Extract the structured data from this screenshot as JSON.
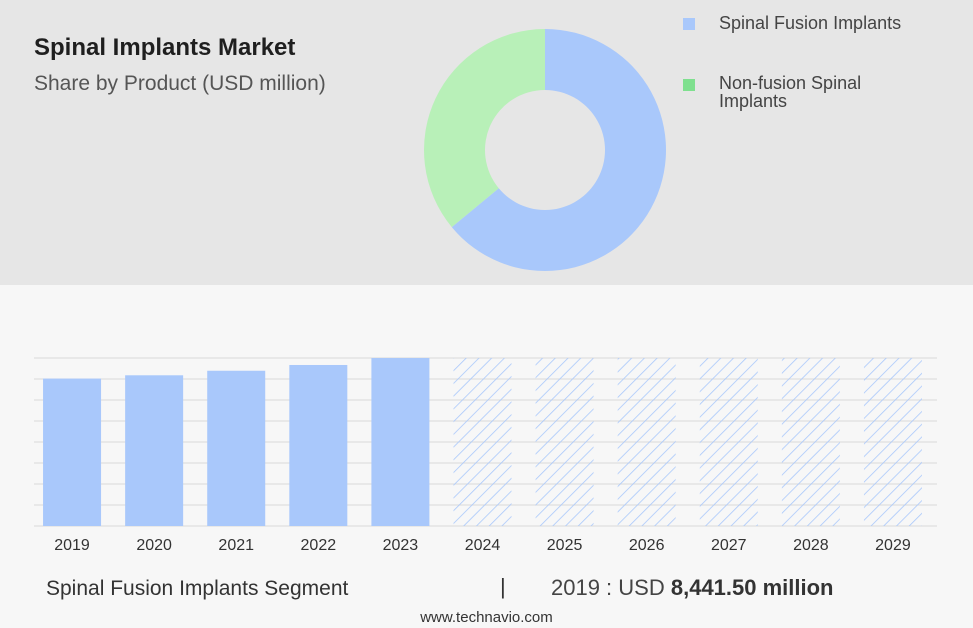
{
  "header": {
    "title": "Spinal Implants Market",
    "subtitle": "Share by Product (USD million)"
  },
  "colors": {
    "fusion": "#a9c8fb",
    "nonfusion": "#b8f0b8",
    "legend_fusion": "#a9c8fb",
    "legend_nonfusion": "#7fe08f",
    "forecast_hatch": "#a9c8fb"
  },
  "chart_data": [
    {
      "type": "pie",
      "variant": "donut",
      "title": "",
      "series": [
        {
          "name": "Spinal Fusion Implants",
          "value": 64
        },
        {
          "name": "Non-fusion Spinal Implants",
          "value": 36
        }
      ],
      "legend_position": "top-right"
    },
    {
      "type": "bar",
      "series_name": "Spinal Fusion Implants Segment",
      "categories": [
        "2019",
        "2020",
        "2021",
        "2022",
        "2023",
        "2024",
        "2025",
        "2026",
        "2027",
        "2028",
        "2029"
      ],
      "values": [
        8441.5,
        8630,
        8890,
        9220,
        9620,
        9620,
        9620,
        9620,
        9620,
        9620,
        9620
      ],
      "forecast_from": "2024",
      "ylim": [
        0,
        9620
      ],
      "grid": true,
      "xlabel": "",
      "ylabel": ""
    }
  ],
  "footer": {
    "segment_label": "Spinal Fusion Implants Segment",
    "divider": "|",
    "year_prefix": "2019 : USD",
    "value": "8,441.50 million",
    "source": "www.technavio.com"
  }
}
